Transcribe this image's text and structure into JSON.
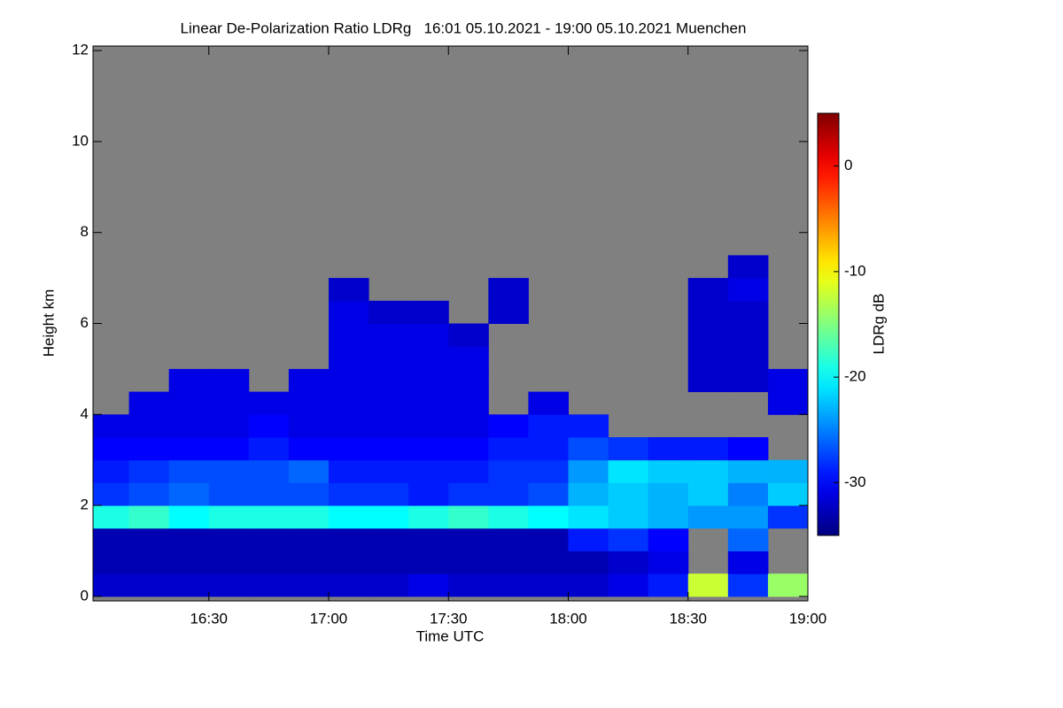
{
  "chart_data": {
    "type": "heatmap",
    "title": "Linear De-Polarization Ratio LDRg   16:01 05.10.2021 - 19:00 05.10.2021 Muenchen",
    "x_label": "Time UTC",
    "y_label": "Height km",
    "colorbar_label": "LDRg dB",
    "colormap": "jet",
    "missing_color": "#808080",
    "xlim": [
      961,
      1140
    ],
    "xticks": [
      {
        "value": 990,
        "label": "16:30"
      },
      {
        "value": 1020,
        "label": "17:00"
      },
      {
        "value": 1050,
        "label": "17:30"
      },
      {
        "value": 1080,
        "label": "18:00"
      },
      {
        "value": 1110,
        "label": "18:30"
      },
      {
        "value": 1140,
        "label": "19:00"
      }
    ],
    "ylim": [
      -0.1,
      12.1
    ],
    "yticks": [
      0,
      2,
      4,
      6,
      8,
      10,
      12
    ],
    "zlim": [
      -35,
      5
    ],
    "zticks": [
      0,
      -10,
      -20,
      -30
    ],
    "x_bins": [
      961,
      970,
      980,
      990,
      1000,
      1010,
      1020,
      1030,
      1040,
      1050,
      1060,
      1070,
      1080,
      1090,
      1100,
      1110,
      1120,
      1130,
      1140
    ],
    "y_bins": [
      0,
      0.5,
      1,
      1.5,
      2,
      2.5,
      3,
      3.5,
      4,
      4.5,
      5,
      5.5,
      6,
      6.5,
      7,
      7.5
    ],
    "z": [
      [
        -32,
        -32,
        -32,
        -32,
        -32,
        -32,
        -32,
        -32,
        -31,
        -32,
        -32,
        -32,
        -32,
        -31,
        -29,
        -12,
        -28,
        -14
      ],
      [
        -33,
        -33,
        -33,
        -33,
        -33,
        -33,
        -33,
        -33,
        -33,
        -33,
        -33,
        -33,
        -33,
        -32,
        -31,
        null,
        -31,
        null
      ],
      [
        -33,
        -33,
        -33,
        -33,
        -33,
        -33,
        -33,
        -33,
        -33,
        -33,
        -33,
        -33,
        -29,
        -28,
        -30,
        null,
        -26,
        null
      ],
      [
        -19,
        -18,
        -20,
        -19,
        -19,
        -19,
        -20,
        -20,
        -19,
        -18,
        -19,
        -20,
        -21,
        -22,
        -23,
        -24,
        -24,
        -28
      ],
      [
        -28,
        -27,
        -26,
        -27,
        -27,
        -27,
        -28,
        -28,
        -29,
        -28,
        -28,
        -27,
        -23,
        -22,
        -23,
        -22,
        -25,
        -22
      ],
      [
        -29,
        -28,
        -27,
        -27,
        -27,
        -26,
        -29,
        -29,
        -29,
        -29,
        -28,
        -28,
        -24,
        -21,
        -22,
        -22,
        -23,
        -23
      ],
      [
        -30,
        -30,
        -30,
        -30,
        -29,
        -30,
        -30,
        -30,
        -30,
        -30,
        -29,
        -29,
        -27,
        -28,
        -29,
        -29,
        -30,
        null
      ],
      [
        -31,
        -31,
        -31,
        -31,
        -30,
        -31,
        -31,
        -31,
        -31,
        -31,
        -30,
        -29,
        -29,
        null,
        null,
        null,
        null,
        null
      ],
      [
        null,
        -31,
        -31,
        -31,
        -31,
        -31,
        -31,
        -31,
        -31,
        -31,
        null,
        -31,
        null,
        null,
        null,
        null,
        null,
        -31
      ],
      [
        null,
        null,
        -31,
        -31,
        null,
        -31,
        -31,
        -31,
        -31,
        -31,
        null,
        null,
        null,
        null,
        null,
        -32,
        -32,
        -31
      ],
      [
        null,
        null,
        null,
        null,
        null,
        null,
        -31,
        -31,
        -31,
        -31,
        null,
        null,
        null,
        null,
        null,
        -32,
        -32,
        null
      ],
      [
        null,
        null,
        null,
        null,
        null,
        null,
        -31,
        -31,
        -31,
        -32,
        null,
        null,
        null,
        null,
        null,
        -32,
        -32,
        null
      ],
      [
        null,
        null,
        null,
        null,
        null,
        null,
        -31,
        -32,
        -32,
        null,
        -32,
        null,
        null,
        null,
        null,
        -32,
        -32,
        null
      ],
      [
        null,
        null,
        null,
        null,
        null,
        null,
        -32,
        null,
        null,
        null,
        -32,
        null,
        null,
        null,
        null,
        -32,
        -31,
        null
      ],
      [
        null,
        null,
        null,
        null,
        null,
        null,
        null,
        null,
        null,
        null,
        null,
        null,
        null,
        null,
        null,
        null,
        -32,
        null
      ]
    ]
  }
}
